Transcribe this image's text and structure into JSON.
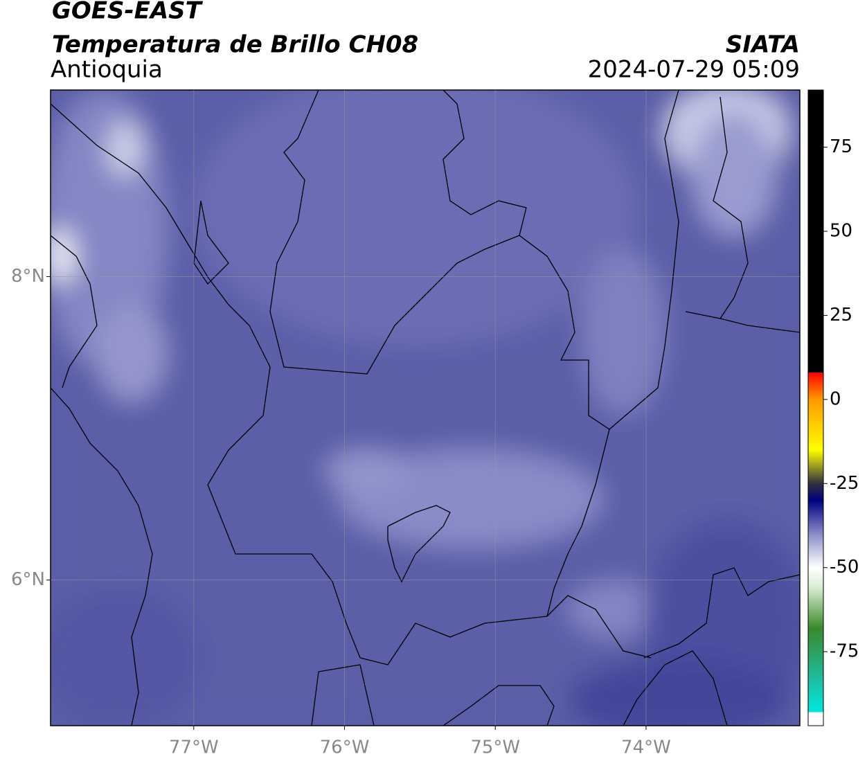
{
  "map": {
    "title": "GOES-EAST",
    "subtitle": "Temperatura de Brillo CH08",
    "source": "SIATA",
    "region": "Antioquia",
    "datetime": "2024-07-29 05:09",
    "xlim": [
      -77.95,
      -72.98
    ],
    "ylim": [
      5.04,
      9.23
    ],
    "xticks": [
      {
        "value": -77,
        "label": "77°W"
      },
      {
        "value": -76,
        "label": "76°W"
      },
      {
        "value": -75,
        "label": "75°W"
      },
      {
        "value": -74,
        "label": "74°W"
      }
    ],
    "yticks": [
      {
        "value": 8,
        "label": "8°N"
      },
      {
        "value": 6,
        "label": "6°N"
      }
    ],
    "grid": true,
    "colorbar": {
      "clim": [
        -97,
        92
      ],
      "ticks": [
        75,
        50,
        25,
        0,
        -25,
        -50,
        -75
      ],
      "stops": [
        {
          "value": -97,
          "color": "#ffffff"
        },
        {
          "value": -93,
          "color": "#ffffff"
        },
        {
          "value": -93,
          "color": "#00e8e0"
        },
        {
          "value": -82,
          "color": "#20b898"
        },
        {
          "value": -68,
          "color": "#3a8a2a"
        },
        {
          "value": -56,
          "color": "#d8ecd0"
        },
        {
          "value": -50,
          "color": "#ffffff"
        },
        {
          "value": -40,
          "color": "#8a8cc8"
        },
        {
          "value": -30,
          "color": "#000080"
        },
        {
          "value": -25,
          "color": "#303040"
        },
        {
          "value": -15,
          "color": "#ffff00"
        },
        {
          "value": 0,
          "color": "#ff9900"
        },
        {
          "value": 8,
          "color": "#ff0000"
        },
        {
          "value": 8,
          "color": "#000000"
        },
        {
          "value": 92,
          "color": "#000000"
        }
      ]
    }
  }
}
